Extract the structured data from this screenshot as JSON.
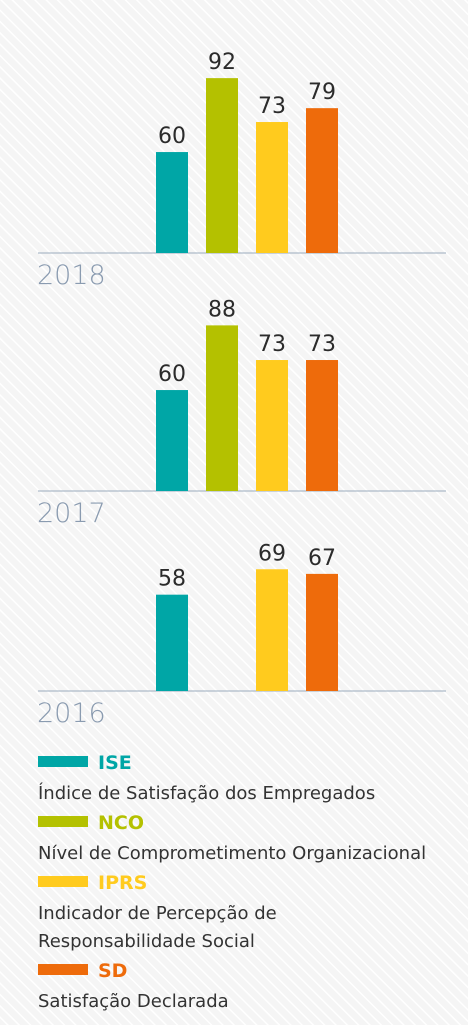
{
  "chart_data": [
    {
      "type": "bar",
      "title": "2018",
      "values": [
        60,
        92,
        73,
        79
      ],
      "ylim": [
        16.3,
        100
      ]
    },
    {
      "type": "bar",
      "title": "2017",
      "values": [
        60,
        88,
        73,
        73
      ],
      "ylim": [
        16.3,
        100
      ]
    },
    {
      "type": "bar",
      "title": "2016",
      "values": [
        58,
        null,
        69,
        67
      ],
      "ylim": [
        16.3,
        100
      ]
    }
  ],
  "legend": [
    {
      "code": "ISE",
      "color": "#00a6a6",
      "description": [
        "Índice de Satisfação dos Empregados"
      ]
    },
    {
      "code": "NCO",
      "color": "#b4c100",
      "description": [
        "Nível de Comprometimento Organizacional"
      ]
    },
    {
      "code": "IPRS",
      "color": "#ffcb1e",
      "description": [
        "Indicador de Percepção de",
        "Responsabilidade Social"
      ]
    },
    {
      "code": "SD",
      "color": "#ee6b0b",
      "description": [
        "Satisfação Declarada"
      ]
    }
  ]
}
